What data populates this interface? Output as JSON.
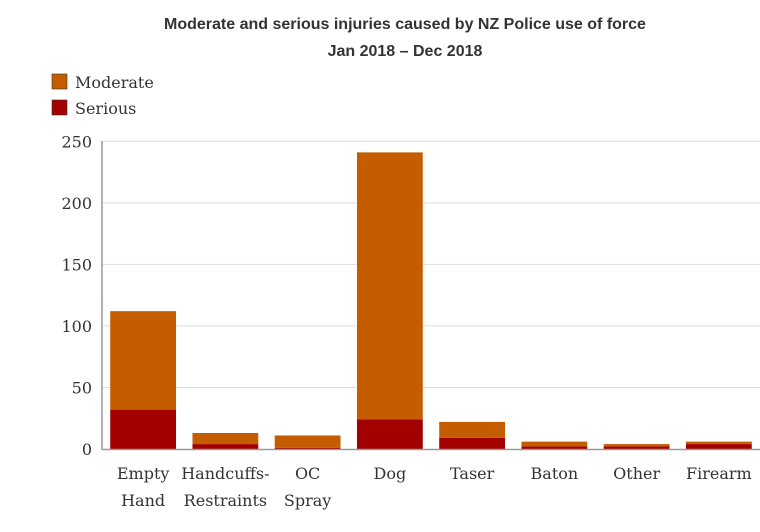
{
  "chart_data": {
    "type": "bar",
    "stacked": true,
    "title": "Moderate and serious injuries caused by NZ Police use of force",
    "subtitle": "Jan 2018 – Dec 2018",
    "categories": [
      [
        "Empty",
        "Hand"
      ],
      [
        "Handcuffs-",
        "Restraints"
      ],
      [
        "OC",
        "Spray"
      ],
      [
        "Dog"
      ],
      [
        "Taser"
      ],
      [
        "Baton"
      ],
      [
        "Other"
      ],
      [
        "Firearm"
      ]
    ],
    "series": [
      {
        "name": "Serious",
        "color": "#a30000",
        "values": [
          32,
          4,
          1,
          24,
          9,
          2,
          2,
          4
        ]
      },
      {
        "name": "Moderate",
        "color": "#c45c00",
        "values": [
          80,
          9,
          10,
          217,
          13,
          4,
          2,
          2
        ]
      }
    ],
    "legend": [
      "Moderate",
      "Serious"
    ],
    "ylim": [
      0,
      250
    ],
    "yticks": [
      0,
      50,
      100,
      150,
      200,
      250
    ],
    "grid": true,
    "legend_position": "top-left"
  }
}
